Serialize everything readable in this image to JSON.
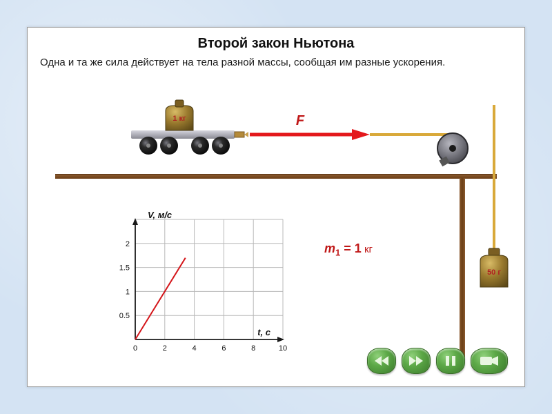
{
  "title": "Второй закон Ньютона",
  "subtitle": "Одна и та же сила действует на тела разной массы, сообщая им разные ускорения.",
  "scene": {
    "F_label": "F",
    "cart_mass_label": "1 кг",
    "hanging_mass_label": "50 г",
    "colors": {
      "table": "#7a4a20",
      "force_arrow": "#e4181c",
      "rope": "#d9a93a",
      "weight_body": "#8a6a24",
      "weight_highlight": "#c4a24a",
      "mass_label": "#a82020",
      "cart_platform_top": "#cfcfd6",
      "cart_platform_bot": "#8a8a94",
      "wheel": "#262626",
      "pulley_body": "#6a6a72",
      "pulley_rim": "#303034"
    }
  },
  "mass_equation": {
    "symbol": "m",
    "subscript": "1",
    "equals": " = ",
    "value": "1",
    "unit": " кг"
  },
  "chart": {
    "type": "line",
    "x_label": "t, с",
    "y_label": "V, м/с",
    "xlim": [
      0,
      10
    ],
    "ylim": [
      0,
      2.5
    ],
    "x_ticks": [
      0,
      2,
      4,
      6,
      8,
      10
    ],
    "y_ticks": [
      0.5,
      1,
      1.5,
      2
    ],
    "line": {
      "points": [
        [
          0,
          0
        ],
        [
          3.4,
          1.7
        ]
      ],
      "color": "#d4151a",
      "width": 2
    },
    "axis_color": "#1a1a1a",
    "grid_color": "#b8b8b8",
    "tick_fontsize": 11,
    "label_color": "#111",
    "background": "#ffffff"
  },
  "controls": {
    "buttons": [
      "rewind",
      "forward",
      "pause",
      "camera"
    ],
    "glyph_color": "#e8f6e0"
  }
}
